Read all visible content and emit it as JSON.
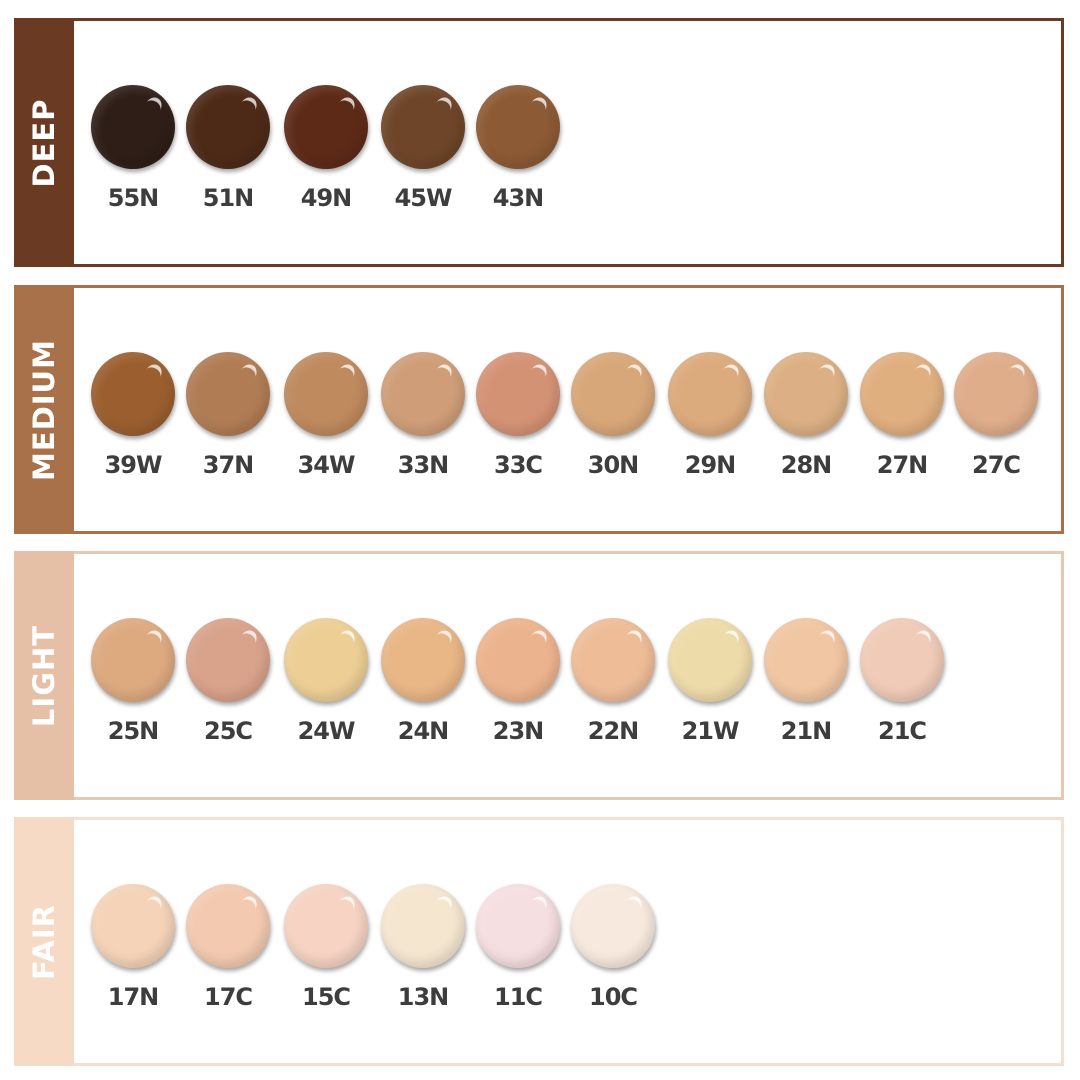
{
  "groups": [
    {
      "name": "DEEP",
      "color": "#6b3a22",
      "border": "#6b3a22",
      "shades": [
        {
          "code": "55N",
          "color": "#2e1e17"
        },
        {
          "code": "51N",
          "color": "#4d2a18"
        },
        {
          "code": "49N",
          "color": "#5e2a18"
        },
        {
          "code": "45W",
          "color": "#6e4528"
        },
        {
          "code": "43N",
          "color": "#8c5a34"
        }
      ]
    },
    {
      "name": "MEDIUM",
      "color": "#a8714a",
      "border": "#a8714a",
      "shades": [
        {
          "code": "39W",
          "color": "#9b5f2f"
        },
        {
          "code": "37N",
          "color": "#b07c54"
        },
        {
          "code": "34W",
          "color": "#bf8a5e"
        },
        {
          "code": "33N",
          "color": "#cf9e78"
        },
        {
          "code": "33C",
          "color": "#d49275"
        },
        {
          "code": "30N",
          "color": "#d8a779"
        },
        {
          "code": "29N",
          "color": "#dcab7d"
        },
        {
          "code": "28N",
          "color": "#dcb084"
        },
        {
          "code": "27N",
          "color": "#e0af80"
        },
        {
          "code": "27C",
          "color": "#dfad8a"
        }
      ]
    },
    {
      "name": "LIGHT",
      "color": "#e5bfa6",
      "border": "#e8c8b2",
      "shades": [
        {
          "code": "25N",
          "color": "#ddaa80"
        },
        {
          "code": "25C",
          "color": "#d9a28b"
        },
        {
          "code": "24W",
          "color": "#edcf96"
        },
        {
          "code": "24N",
          "color": "#e9b686"
        },
        {
          "code": "23N",
          "color": "#ecb48e"
        },
        {
          "code": "22N",
          "color": "#eebd98"
        },
        {
          "code": "21W",
          "color": "#eedbaa"
        },
        {
          "code": "21N",
          "color": "#f1c6a3"
        },
        {
          "code": "21C",
          "color": "#f0cbb8"
        }
      ]
    },
    {
      "name": "FAIR",
      "color": "#f7dac6",
      "border": "#f7dfcd",
      "shades": [
        {
          "code": "17N",
          "color": "#f4d3b8"
        },
        {
          "code": "17C",
          "color": "#f3cab0"
        },
        {
          "code": "15C",
          "color": "#f6d3c2"
        },
        {
          "code": "13N",
          "color": "#f5e6cf"
        },
        {
          "code": "11C",
          "color": "#f6dfe0"
        },
        {
          "code": "10C",
          "color": "#f7e9dd"
        }
      ]
    }
  ]
}
